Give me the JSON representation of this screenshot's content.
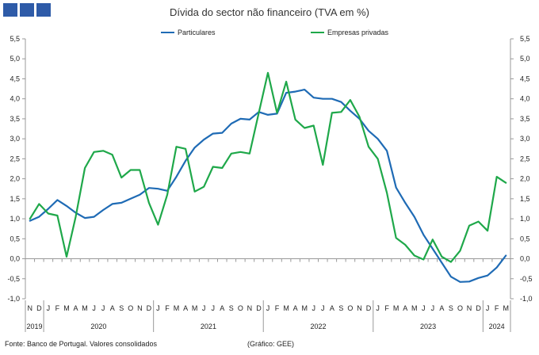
{
  "header": {
    "logo_color": "#2e5ba8",
    "title": "Dívida do sector não financeiro (TVA em %)"
  },
  "footer": {
    "source": "Fonte: Banco de Portugal. Valores consolidados",
    "credit": "(Gráfico: GEE)"
  },
  "chart_data": {
    "type": "line",
    "title": "Dívida do sector não financeiro (TVA em %)",
    "xlabel": "",
    "ylabel": "",
    "ylim": [
      -1.0,
      5.5
    ],
    "y_ticks": [
      "5,5",
      "5,0",
      "4,5",
      "4,0",
      "3,5",
      "3,0",
      "2,5",
      "2,0",
      "1,5",
      "1,0",
      "0,5",
      "0,0",
      "-0,5",
      "-1,0"
    ],
    "grid": false,
    "legend_position": "top",
    "month_labels": [
      "N",
      "D",
      "J",
      "F",
      "M",
      "A",
      "M",
      "J",
      "J",
      "A",
      "S",
      "O",
      "N",
      "D",
      "J",
      "F",
      "M",
      "A",
      "M",
      "J",
      "J",
      "A",
      "S",
      "O",
      "N",
      "D",
      "J",
      "F",
      "M",
      "A",
      "M",
      "J",
      "J",
      "A",
      "S",
      "O",
      "N",
      "D",
      "J",
      "F",
      "M",
      "A",
      "M",
      "J",
      "J",
      "A",
      "S",
      "O",
      "N",
      "D",
      "J",
      "F",
      "M"
    ],
    "year_labels": [
      {
        "label": "2019",
        "start": 0,
        "end": 1
      },
      {
        "label": "2020",
        "start": 2,
        "end": 13
      },
      {
        "label": "2021",
        "start": 14,
        "end": 25
      },
      {
        "label": "2022",
        "start": 26,
        "end": 37
      },
      {
        "label": "2023",
        "start": 38,
        "end": 49
      },
      {
        "label": "2024",
        "start": 50,
        "end": 52
      }
    ],
    "series": [
      {
        "name": "Particulares",
        "color": "#1f6bb5",
        "values": [
          0.95,
          1.05,
          1.25,
          1.47,
          1.32,
          1.15,
          1.02,
          1.05,
          1.22,
          1.37,
          1.4,
          1.5,
          1.6,
          1.77,
          1.75,
          1.7,
          2.05,
          2.45,
          2.78,
          2.98,
          3.13,
          3.15,
          3.38,
          3.5,
          3.48,
          3.67,
          3.6,
          3.63,
          4.15,
          4.18,
          4.23,
          4.03,
          4.0,
          4.0,
          3.92,
          3.7,
          3.5,
          3.2,
          3.0,
          2.7,
          1.78,
          1.4,
          1.05,
          0.6,
          0.25,
          -0.1,
          -0.45,
          -0.58,
          -0.57,
          -0.48,
          -0.42,
          -0.22,
          0.08
        ]
      },
      {
        "name": "Empresas privadas",
        "color": "#1fa84a",
        "values": [
          1.0,
          1.37,
          1.13,
          1.08,
          0.05,
          1.05,
          2.27,
          2.67,
          2.7,
          2.6,
          2.03,
          2.22,
          2.22,
          1.4,
          0.85,
          1.6,
          2.8,
          2.75,
          1.68,
          1.8,
          2.3,
          2.27,
          2.63,
          2.67,
          2.63,
          3.65,
          4.65,
          3.65,
          4.43,
          3.48,
          3.27,
          3.33,
          2.35,
          3.65,
          3.67,
          3.97,
          3.55,
          2.8,
          2.5,
          1.65,
          0.52,
          0.35,
          0.08,
          -0.02,
          0.48,
          0.05,
          -0.08,
          0.2,
          0.83,
          0.93,
          0.7,
          2.05,
          1.9
        ]
      }
    ]
  }
}
